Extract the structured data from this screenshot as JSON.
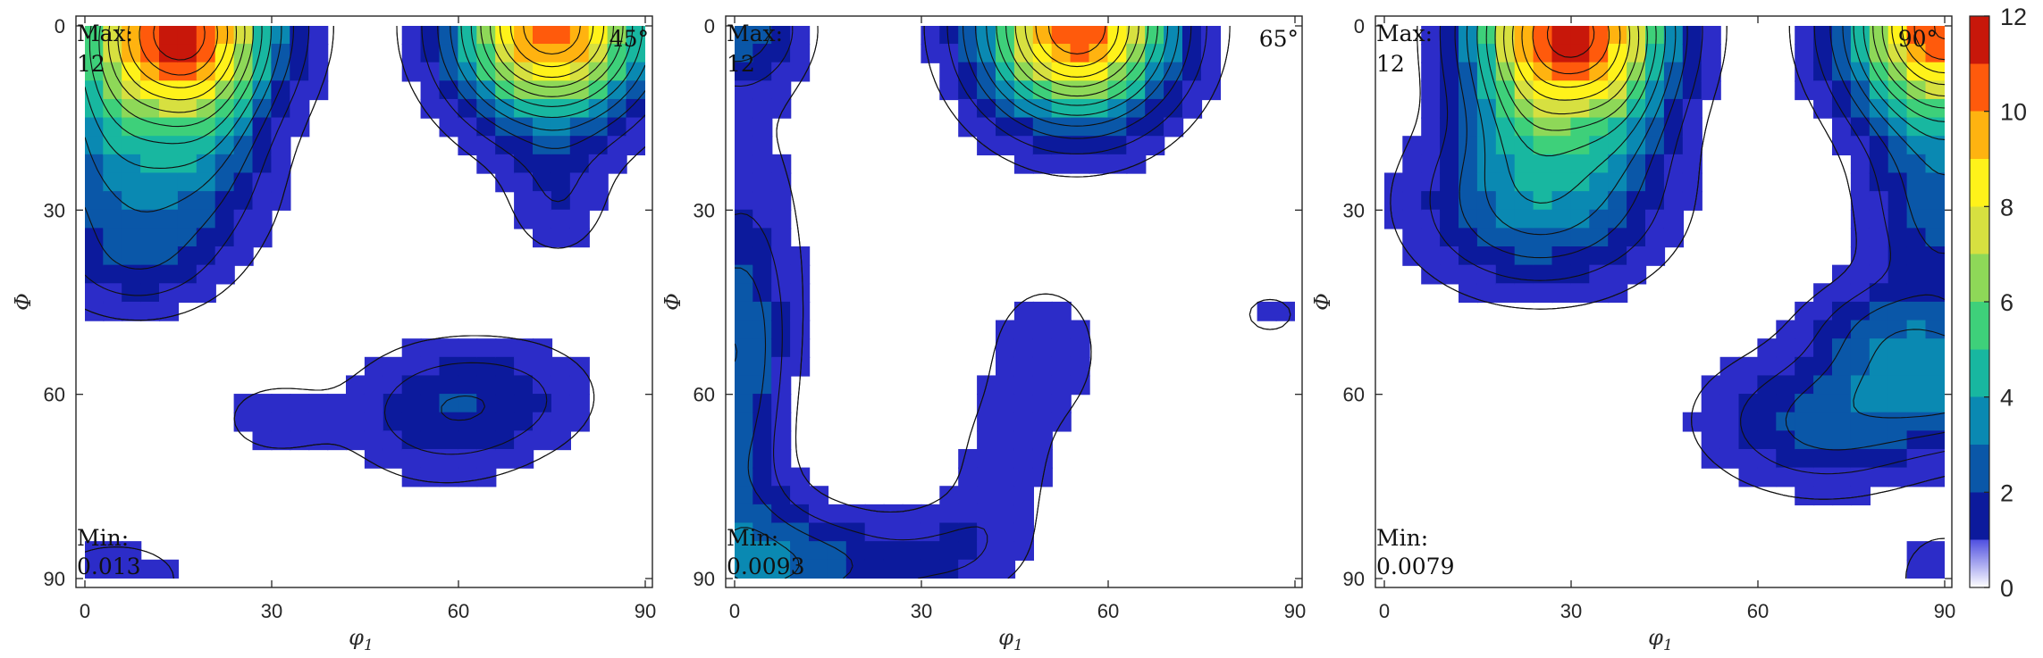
{
  "colormap": [
    "#ffffff",
    "#2c2cc8",
    "#0c1a9c",
    "#0a57a8",
    "#0a89b2",
    "#18b7a0",
    "#3ed07a",
    "#8ed858",
    "#d7e040",
    "#fff21a",
    "#ffb310",
    "#ff5a0c",
    "#c8170a"
  ],
  "chart_data": [
    {
      "type": "contour",
      "xlabel": "φ1",
      "ylabel": "Φ",
      "xlim": [
        0,
        90
      ],
      "ylim": [
        0,
        90
      ],
      "y_inverted": true,
      "xticks": [
        "0",
        "30",
        "60",
        "90"
      ],
      "yticks": [
        "0",
        "30",
        "60",
        "90"
      ],
      "section_label": "45°",
      "max_label": "Max:",
      "max_value": "12",
      "min_label": "Min:",
      "min_value": "0.013",
      "peaks": [
        {
          "phi1": 15,
          "Phi": 0,
          "value": 12,
          "sx": 11,
          "sy": 11
        },
        {
          "phi1": 75,
          "Phi": 0,
          "value": 12,
          "sx": 11,
          "sy": 11
        },
        {
          "phi1": 10,
          "Phi": 28,
          "value": 3,
          "sx": 13,
          "sy": 10
        },
        {
          "phi1": 4,
          "Phi": 14,
          "value": 1.8,
          "sx": 7,
          "sy": 10
        },
        {
          "phi1": 20,
          "Phi": 14,
          "value": 1.6,
          "sx": 6,
          "sy": 11
        },
        {
          "phi1": 8,
          "Phi": 40,
          "value": 1.4,
          "sx": 9,
          "sy": 6
        },
        {
          "phi1": 76,
          "Phi": 29,
          "value": 1.6,
          "sx": 6,
          "sy": 7
        },
        {
          "phi1": 57,
          "Phi": 63,
          "value": 2.6,
          "sx": 11,
          "sy": 8
        },
        {
          "phi1": 72,
          "Phi": 60,
          "value": 1.3,
          "sx": 10,
          "sy": 7
        },
        {
          "phi1": 30,
          "Phi": 64,
          "value": 1.4,
          "sx": 7,
          "sy": 5
        },
        {
          "phi1": 5,
          "Phi": 90,
          "value": 1.7,
          "sx": 9,
          "sy": 5
        }
      ]
    },
    {
      "type": "contour",
      "xlabel": "φ1",
      "ylabel": "Φ",
      "xlim": [
        0,
        90
      ],
      "ylim": [
        0,
        90
      ],
      "y_inverted": true,
      "xticks": [
        "0",
        "30",
        "60",
        "90"
      ],
      "yticks": [
        "0",
        "30",
        "60",
        "90"
      ],
      "section_label": "65°",
      "max_label": "Max:",
      "max_value": "12",
      "min_label": "Min:",
      "min_value": "0.0093",
      "peaks": [
        {
          "phi1": 55,
          "Phi": 0,
          "value": 12,
          "sx": 11,
          "sy": 11
        },
        {
          "phi1": 0,
          "Phi": 0,
          "value": 3.5,
          "sx": 8,
          "sy": 7
        },
        {
          "phi1": 0,
          "Phi": 50,
          "value": 2.6,
          "sx": 6,
          "sy": 12
        },
        {
          "phi1": 2,
          "Phi": 30,
          "value": 1.3,
          "sx": 8,
          "sy": 18
        },
        {
          "phi1": 0,
          "Phi": 70,
          "value": 2.2,
          "sx": 6,
          "sy": 13
        },
        {
          "phi1": 4,
          "Phi": 88,
          "value": 3.2,
          "sx": 12,
          "sy": 8
        },
        {
          "phi1": 20,
          "Phi": 88,
          "value": 1.4,
          "sx": 12,
          "sy": 5
        },
        {
          "phi1": 36,
          "Phi": 85,
          "value": 1.4,
          "sx": 8,
          "sy": 6
        },
        {
          "phi1": 43,
          "Phi": 72,
          "value": 1.5,
          "sx": 6,
          "sy": 9
        },
        {
          "phi1": 50,
          "Phi": 53,
          "value": 1.7,
          "sx": 7,
          "sy": 9
        },
        {
          "phi1": 86,
          "Phi": 47,
          "value": 1.4,
          "sx": 4,
          "sy": 3
        }
      ]
    },
    {
      "type": "contour",
      "xlabel": "φ1",
      "ylabel": "Φ",
      "xlim": [
        0,
        90
      ],
      "ylim": [
        0,
        90
      ],
      "y_inverted": true,
      "xticks": [
        "0",
        "30",
        "60",
        "90"
      ],
      "yticks": [
        "0",
        "30",
        "60",
        "90"
      ],
      "section_label": "90°",
      "max_label": "Max:",
      "max_value": "12",
      "min_label": "Min:",
      "min_value": "0.0079",
      "peaks": [
        {
          "phi1": 30,
          "Phi": 0,
          "value": 12,
          "sx": 11,
          "sy": 11
        },
        {
          "phi1": 90,
          "Phi": 0,
          "value": 12,
          "sx": 11,
          "sy": 11
        },
        {
          "phi1": 25,
          "Phi": 29,
          "value": 4.3,
          "sx": 14,
          "sy": 10
        },
        {
          "phi1": 23,
          "Phi": 13,
          "value": 1.6,
          "sx": 6,
          "sy": 9
        },
        {
          "phi1": 38,
          "Phi": 13,
          "value": 1.6,
          "sx": 6,
          "sy": 9
        },
        {
          "phi1": 90,
          "Phi": 30,
          "value": 3.3,
          "sx": 9,
          "sy": 12
        },
        {
          "phi1": 90,
          "Phi": 58,
          "value": 4.4,
          "sx": 14,
          "sy": 8
        },
        {
          "phi1": 62,
          "Phi": 64,
          "value": 1.5,
          "sx": 12,
          "sy": 8
        },
        {
          "phi1": 72,
          "Phi": 68,
          "value": 1.4,
          "sx": 10,
          "sy": 7
        },
        {
          "phi1": 78,
          "Phi": 48,
          "value": 1.3,
          "sx": 8,
          "sy": 5
        },
        {
          "phi1": 90,
          "Phi": 90,
          "value": 1.7,
          "sx": 6,
          "sy": 6
        }
      ]
    }
  ],
  "colorbar": {
    "min": 0,
    "max": 12,
    "tick_labels": [
      "0",
      "2",
      "4",
      "6",
      "8",
      "10",
      "12"
    ],
    "tick_values": [
      0,
      2,
      4,
      6,
      8,
      10,
      12
    ]
  }
}
